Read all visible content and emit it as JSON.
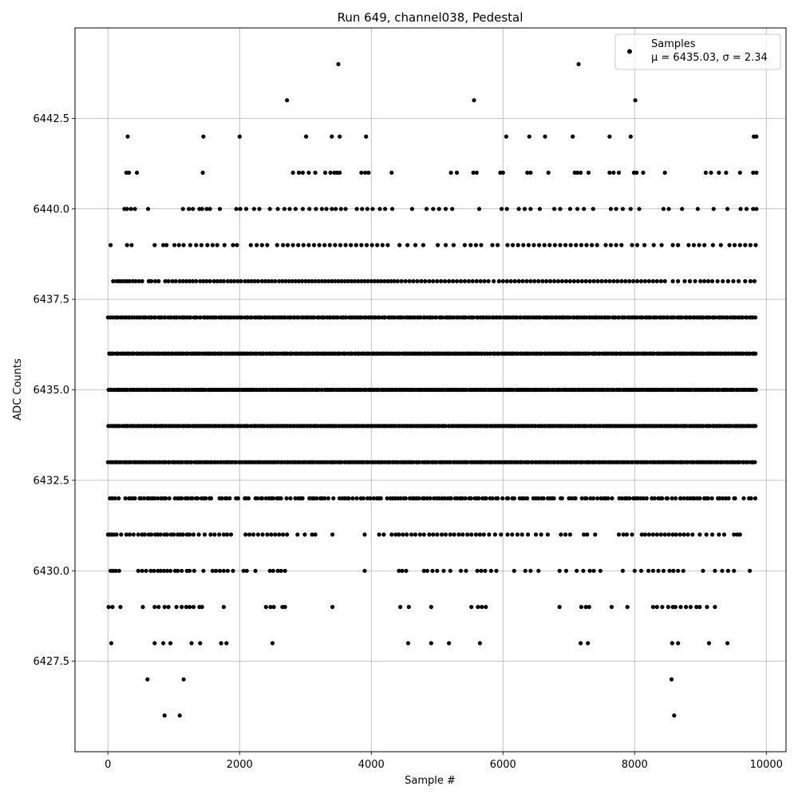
{
  "chart_data": {
    "type": "scatter",
    "title": "Run 649, channel038, Pedestal",
    "xlabel": "Sample #",
    "ylabel": "ADC Counts",
    "xlim": [
      -500,
      10300
    ],
    "ylim": [
      6425,
      6445
    ],
    "xticks": [
      0,
      2000,
      4000,
      6000,
      8000,
      10000
    ],
    "xtick_labels": [
      "0",
      "2000",
      "4000",
      "6000",
      "8000",
      "10000"
    ],
    "yticks": [
      6427.5,
      6430.0,
      6432.5,
      6435.0,
      6437.5,
      6440.0,
      6442.5
    ],
    "ytick_labels": [
      "6427.5",
      "6430.0",
      "6432.5",
      "6435.0",
      "6437.5",
      "6440.0",
      "6442.5"
    ],
    "grid": true,
    "legend_position": "upper right",
    "marker_color": "#000000",
    "x_range": [
      0,
      9850
    ],
    "series": [
      {
        "name": "Samples",
        "label_line2": "μ = 6435.03, σ = 2.34",
        "mean": 6435.03,
        "std": 2.34,
        "levels": [
          {
            "y": 6444,
            "x": [
              3500,
              7150
            ]
          },
          {
            "y": 6443,
            "x": [
              2720,
              5560,
              8010
            ]
          },
          {
            "y": 6442,
            "x": [
              300,
              1450,
              2000,
              3010,
              3400,
              3520,
              3920,
              6050,
              6400,
              6640,
              7060,
              7620,
              7940,
              9810,
              9850
            ]
          },
          {
            "y": 6441,
            "x": [
              280,
              320,
              440,
              1440,
              2810,
              2900,
              2960,
              3050,
              3150,
              3300,
              3380,
              3440,
              3480,
              3520,
              3850,
              3910,
              3960,
              4310,
              5210,
              5300,
              5550,
              5600,
              5960,
              6000,
              6370,
              6420,
              6690,
              7090,
              7130,
              7180,
              7300,
              7620,
              7680,
              7760,
              7990,
              8030,
              8130,
              8460,
              9080,
              9160,
              9280,
              9390,
              9600,
              9800,
              9850
            ]
          },
          {
            "y": 6440,
            "x": [
              250,
              290,
              350,
              410,
              610,
              1140,
              1230,
              1290,
              1390,
              1430,
              1500,
              1550,
              1700,
              1950,
              2010,
              2100,
              2220,
              2300,
              2460,
              2580,
              2680,
              2760,
              2850,
              2960,
              3060,
              3160,
              3250,
              3320,
              3400,
              3460,
              3540,
              3610,
              3780,
              3860,
              3940,
              4020,
              4130,
              4210,
              4320,
              4620,
              4840,
              4940,
              5030,
              5130,
              5230,
              5640,
              5980,
              6060,
              6240,
              6330,
              6420,
              6560,
              6780,
              6870,
              7020,
              7130,
              7230,
              7370,
              7640,
              7720,
              7820,
              7940,
              8070,
              8440,
              8520,
              8720,
              8960,
              9200,
              9410,
              9610,
              9700,
              9800,
              9850
            ]
          },
          {
            "y": 6439,
            "x": [
              40,
              290,
              360,
              710,
              840,
              890,
              1010,
              1080,
              1150,
              1250,
              1340,
              1420,
              1510,
              1590,
              1660,
              1770,
              1900,
              1960,
              2170,
              2260,
              2340,
              2420,
              2570,
              2660,
              2730,
              2810,
              2890,
              2970,
              3050,
              3130,
              3210,
              3290,
              3370,
              3450,
              3530,
              3610,
              3690,
              3770,
              3850,
              3930,
              4010,
              4090,
              4170,
              4250,
              4430,
              4550,
              4670,
              4790,
              5010,
              5130,
              5250,
              5420,
              5510,
              5590,
              5670,
              5840,
              5920,
              6070,
              6150,
              6230,
              6310,
              6390,
              6470,
              6550,
              6630,
              6710,
              6790,
              6870,
              6950,
              7030,
              7110,
              7190,
              7270,
              7350,
              7430,
              7560,
              7640,
              7720,
              7800,
              7960,
              8040,
              8150,
              8290,
              8410,
              8580,
              8660,
              8820,
              8900,
              8980,
              9060,
              9190,
              9310,
              9440,
              9520,
              9600,
              9680,
              9760,
              9840
            ]
          },
          {
            "y": 6438,
            "x": [
              80,
              130,
              170,
              210,
              250,
              290,
              330,
              380,
              420,
              470,
              520,
              620,
              660,
              720,
              770,
              870,
              920,
              980,
              1030,
              1090,
              1140,
              1190,
              1240,
              1290,
              1340,
              1400,
              1450,
              1500,
              1550,
              1610,
              1660,
              1710,
              1760,
              1820,
              1870,
              1920,
              1970,
              2020,
              2080,
              2130,
              2180,
              2230,
              2280,
              2340,
              2390,
              2440,
              2490,
              2540,
              2600,
              2650,
              2700,
              2750,
              2800,
              2850,
              2900,
              2950,
              3000,
              3050,
              3100,
              3150,
              3200,
              3250,
              3300,
              3350,
              3400,
              3450,
              3500,
              3550,
              3600,
              3650,
              3700,
              3750,
              3800,
              3850,
              3900,
              3950,
              4000,
              4050,
              4100,
              4150,
              4200,
              4250,
              4300,
              4350,
              4400,
              4460,
              4520,
              4580,
              4640,
              4700,
              4760,
              4820,
              4880,
              4940,
              5000,
              5060,
              5120,
              5180,
              5240,
              5300,
              5360,
              5420,
              5480,
              5540,
              5600,
              5660,
              5720,
              5780,
              5860,
              5940,
              6000,
              6060,
              6120,
              6180,
              6240,
              6300,
              6360,
              6420,
              6480,
              6540,
              6600,
              6660,
              6720,
              6780,
              6840,
              6900,
              6960,
              7020,
              7080,
              7140,
              7200,
              7260,
              7320,
              7380,
              7440,
              7500,
              7560,
              7620,
              7680,
              7740,
              7800,
              7860,
              7920,
              7980,
              8040,
              8100,
              8160,
              8220,
              8280,
              8340,
              8400,
              8460,
              8580,
              8660,
              8760,
              8840,
              8920,
              9000,
              9060,
              9120,
              9180,
              9260,
              9340,
              9420,
              9500,
              9580,
              9680,
              9760,
              9820
            ]
          }
        ],
        "dense_levels": [
          {
            "y": 6437,
            "n": 330
          },
          {
            "y": 6436,
            "n": 380
          },
          {
            "y": 6435,
            "n": 400
          },
          {
            "y": 6434,
            "n": 390
          },
          {
            "y": 6433,
            "n": 350
          },
          {
            "y": 6432,
            "n": 240
          }
        ],
        "lower_levels": [
          {
            "y": 6431,
            "x": [
              0,
              30,
              60,
              90,
              130,
              200,
              280,
              330,
              390,
              460,
              520,
              560,
              620,
              660,
              720,
              760,
              800,
              860,
              900,
              960,
              1000,
              1060,
              1100,
              1140,
              1200,
              1240,
              1300,
              1380,
              1470,
              1560,
              1620,
              1690,
              1760,
              1810,
              1870,
              2090,
              2150,
              2210,
              2280,
              2350,
              2420,
              2480,
              2540,
              2600,
              2660,
              2720,
              2880,
              2990,
              3100,
              3150,
              3410,
              3900,
              4120,
              4190,
              4310,
              4370,
              4420,
              4480,
              4540,
              4610,
              4670,
              4740,
              4800,
              4880,
              4940,
              5000,
              5070,
              5130,
              5200,
              5260,
              5330,
              5390,
              5460,
              5520,
              5590,
              5650,
              5710,
              5790,
              5880,
              5970,
              6070,
              6140,
              6220,
              6290,
              6380,
              6500,
              6580,
              6680,
              6880,
              6950,
              7020,
              7230,
              7280,
              7400,
              7760,
              7830,
              7880,
              7960,
              8110,
              8160,
              8220,
              8280,
              8340,
              8400,
              8460,
              8520,
              8580,
              8630,
              8690,
              8750,
              8810,
              8880,
              8990,
              9090,
              9180,
              9280,
              9360,
              9510,
              9560,
              9600
            ]
          },
          {
            "y": 6430,
            "x": [
              40,
              80,
              120,
              170,
              460,
              520,
              580,
              650,
              700,
              760,
              800,
              850,
              900,
              950,
              1020,
              1060,
              1120,
              1200,
              1240,
              1310,
              1450,
              1590,
              1640,
              1700,
              1760,
              1820,
              1900,
              2060,
              2110,
              2240,
              2460,
              2510,
              2580,
              2630,
              2690,
              3900,
              4420,
              4470,
              4530,
              4800,
              4850,
              4930,
              5000,
              5100,
              5200,
              5360,
              5440,
              5610,
              5670,
              5730,
              5820,
              5900,
              6170,
              6340,
              6420,
              6540,
              6860,
              6960,
              7120,
              7220,
              7320,
              7380,
              7480,
              7820,
              8000,
              8100,
              8210,
              8280,
              8360,
              8440,
              8530,
              8590,
              8660,
              8740,
              9040,
              9220,
              9330,
              9420,
              9510,
              9750
            ]
          },
          {
            "y": 6429,
            "x": [
              10,
              70,
              190,
              530,
              710,
              770,
              860,
              920,
              1040,
              1120,
              1190,
              1240,
              1300,
              1390,
              1430,
              1760,
              2400,
              2470,
              2520,
              2650,
              2690,
              3410,
              4440,
              4570,
              4910,
              5520,
              5620,
              5680,
              5740,
              6860,
              7190,
              7260,
              7310,
              7650,
              7890,
              8280,
              8340,
              8420,
              8510,
              8580,
              8620,
              8700,
              8780,
              8850,
              8940,
              8990,
              9100,
              9220
            ]
          },
          {
            "y": 6428,
            "x": [
              50,
              710,
              840,
              950,
              1270,
              1400,
              1720,
              1800,
              2500,
              4560,
              4910,
              5180,
              5650,
              7180,
              7290,
              8570,
              8660,
              9130,
              9410
            ]
          },
          {
            "y": 6427,
            "x": [
              600,
              1150,
              8560
            ]
          },
          {
            "y": 6426,
            "x": [
              860,
              1090,
              8600
            ]
          }
        ]
      }
    ]
  }
}
